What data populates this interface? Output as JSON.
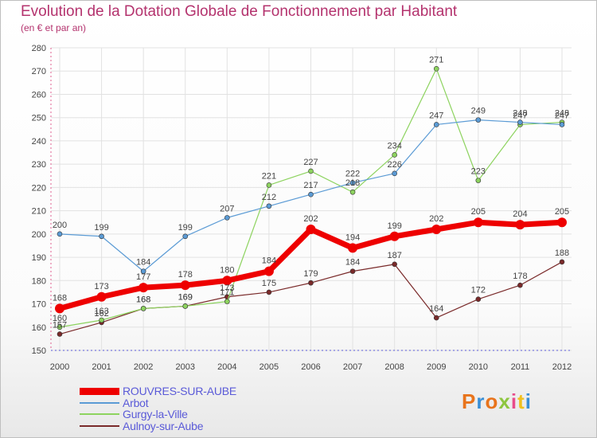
{
  "header": {
    "title": "Evolution de la Dotation Globale de Fonctionnement par Habitant",
    "subtitle": "(en € et par an)"
  },
  "brand": {
    "text": "Proxiti",
    "colors": [
      "#e8741c",
      "#3a8fd6",
      "#e8741c",
      "#8dc63f",
      "#e84c8b",
      "#f0c020",
      "#3a8fd6"
    ]
  },
  "chart_data": {
    "type": "line",
    "categories": [
      "2000",
      "2001",
      "2002",
      "2003",
      "2004",
      "2005",
      "2006",
      "2007",
      "2008",
      "2009",
      "2010",
      "2011",
      "2012"
    ],
    "ylim": [
      150,
      280
    ],
    "yticks": [
      150,
      160,
      170,
      180,
      190,
      200,
      210,
      220,
      230,
      240,
      250,
      260,
      270,
      280
    ],
    "grid": true,
    "legend_position": "bottom-left",
    "series": [
      {
        "name": "ROUVRES-SUR-AUBE",
        "color": "#ee0000",
        "values": [
          168,
          173,
          177,
          178,
          180,
          184,
          202,
          194,
          199,
          202,
          205,
          204,
          205
        ],
        "labels": [
          "168",
          "173",
          "177",
          "178",
          "180",
          "184",
          "202",
          "194",
          "199",
          "202",
          "205",
          "204",
          "205"
        ]
      },
      {
        "name": "Arbot",
        "color": "#5b9bd5",
        "values": [
          200,
          199,
          184,
          199,
          207,
          212,
          217,
          222,
          226,
          247,
          249,
          248,
          247
        ],
        "labels": [
          "200",
          "199",
          "184",
          "199",
          "207",
          "212",
          "217",
          "222",
          "226",
          "247",
          "249",
          "248",
          "247"
        ]
      },
      {
        "name": "Gurgy-la-Ville",
        "color": "#8dd35f",
        "values": [
          160,
          163,
          168,
          169,
          171,
          221,
          227,
          218,
          234,
          271,
          223,
          247,
          248
        ],
        "labels": [
          "160",
          "163",
          "168",
          "169",
          "171",
          "221",
          "227",
          "218",
          "234",
          "271",
          "223",
          "247",
          "248"
        ]
      },
      {
        "name": "Aulnoy-sur-Aube",
        "color": "#7a2a2a",
        "values": [
          157,
          162,
          168,
          169,
          173,
          175,
          179,
          184,
          187,
          164,
          172,
          178,
          188
        ],
        "labels": [
          "157",
          "162",
          "168",
          "169",
          "173",
          "175",
          "179",
          "184",
          "187",
          "164",
          "172",
          "178",
          "188"
        ]
      }
    ]
  }
}
